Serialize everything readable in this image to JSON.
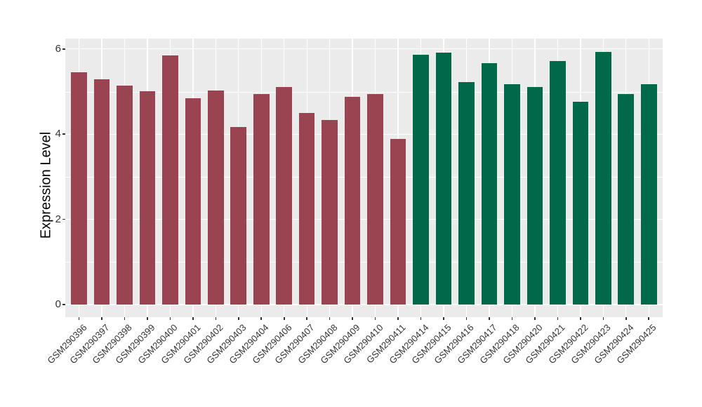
{
  "chart_data": {
    "type": "bar",
    "title": "",
    "xlabel": "",
    "ylabel": "Expression Level",
    "ylim": [
      0,
      6.24
    ],
    "yticks": [
      0,
      2,
      4,
      6
    ],
    "yticks_minor": [
      1,
      3,
      5
    ],
    "grid": true,
    "legend": "none",
    "panel_background": "#EBEBEB",
    "grid_color": "#FFFFFF",
    "bars": [
      {
        "label": "GSM290396",
        "value": 5.46,
        "color": "#9A4452"
      },
      {
        "label": "GSM290397",
        "value": 5.29,
        "color": "#9A4452"
      },
      {
        "label": "GSM290398",
        "value": 5.14,
        "color": "#9A4452"
      },
      {
        "label": "GSM290399",
        "value": 5.01,
        "color": "#9A4452"
      },
      {
        "label": "GSM290400",
        "value": 5.85,
        "color": "#9A4452"
      },
      {
        "label": "GSM290401",
        "value": 4.84,
        "color": "#9A4452"
      },
      {
        "label": "GSM290402",
        "value": 5.03,
        "color": "#9A4452"
      },
      {
        "label": "GSM290403",
        "value": 4.17,
        "color": "#9A4452"
      },
      {
        "label": "GSM290404",
        "value": 4.94,
        "color": "#9A4452"
      },
      {
        "label": "GSM290406",
        "value": 5.11,
        "color": "#9A4452"
      },
      {
        "label": "GSM290407",
        "value": 4.49,
        "color": "#9A4452"
      },
      {
        "label": "GSM290408",
        "value": 4.34,
        "color": "#9A4452"
      },
      {
        "label": "GSM290409",
        "value": 4.87,
        "color": "#9A4452"
      },
      {
        "label": "GSM290410",
        "value": 4.94,
        "color": "#9A4452"
      },
      {
        "label": "GSM290411",
        "value": 3.88,
        "color": "#9A4452"
      },
      {
        "label": "GSM290414",
        "value": 5.86,
        "color": "#00694A"
      },
      {
        "label": "GSM290415",
        "value": 5.92,
        "color": "#00694A"
      },
      {
        "label": "GSM290416",
        "value": 5.22,
        "color": "#00694A"
      },
      {
        "label": "GSM290417",
        "value": 5.67,
        "color": "#00694A"
      },
      {
        "label": "GSM290418",
        "value": 5.17,
        "color": "#00694A"
      },
      {
        "label": "GSM290420",
        "value": 5.11,
        "color": "#00694A"
      },
      {
        "label": "GSM290421",
        "value": 5.72,
        "color": "#00694A"
      },
      {
        "label": "GSM290422",
        "value": 4.76,
        "color": "#00694A"
      },
      {
        "label": "GSM290423",
        "value": 5.93,
        "color": "#00694A"
      },
      {
        "label": "GSM290424",
        "value": 4.94,
        "color": "#00694A"
      },
      {
        "label": "GSM290425",
        "value": 5.17,
        "color": "#00694A"
      }
    ]
  }
}
